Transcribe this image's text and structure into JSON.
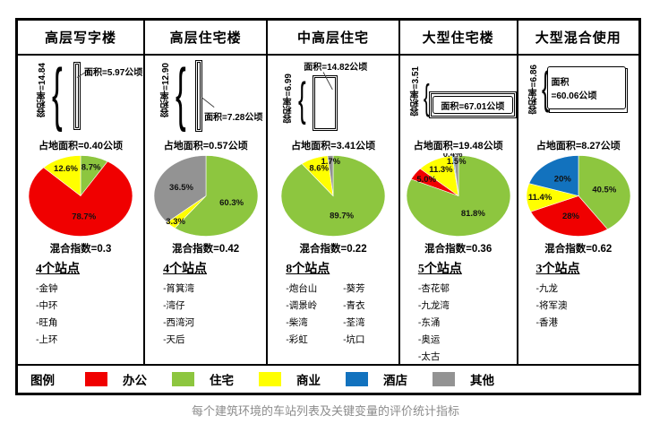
{
  "palette": {
    "office": "#f00000",
    "residential": "#8dc63f",
    "commercial": "#ffff00",
    "hotel": "#1272be",
    "other": "#939393"
  },
  "caption": "每个建筑环境的车站列表及关键变量的评价统计指标",
  "legend": {
    "title": "图例",
    "items": [
      {
        "label": "办公",
        "key": "office"
      },
      {
        "label": "住宅",
        "key": "residential"
      },
      {
        "label": "商业",
        "key": "commercial"
      },
      {
        "label": "酒店",
        "key": "hotel"
      },
      {
        "label": "其他",
        "key": "other"
      }
    ]
  },
  "columns": [
    {
      "title": "高层写字楼",
      "plot_ratio": "容积率=14.84",
      "area_label": "面积=5.97公顷",
      "footprint": "占地面积=0.40公顷",
      "mix_index_label": "混合指数=0.3",
      "station_count": "4个站点",
      "stations": [
        "-金钟",
        "-中环",
        "-旺角",
        "-上环"
      ]
    },
    {
      "title": "高层住宅楼",
      "plot_ratio": "容积率=12.90",
      "area_label": "面积=7.28公顷",
      "footprint": "占地面积=0.57公顷",
      "mix_index_label": "混合指数=0.42",
      "station_count": "4个站点",
      "stations": [
        "-筲箕湾",
        "-湾仔",
        "-西湾河",
        "-天后"
      ]
    },
    {
      "title": "中高层住宅",
      "plot_ratio": "容积率=6.99",
      "area_label": "面积=14.82公顷",
      "footprint": "占地面积=3.41公顷",
      "mix_index_label": "混合指数=0.22",
      "station_count": "8个站点",
      "stations": [
        "-炮台山",
        "-调景岭",
        "-柴湾",
        "-彩虹",
        "-葵芳",
        "-青衣",
        "-荃湾",
        "-坑口"
      ]
    },
    {
      "title": "大型住宅楼",
      "plot_ratio": "容积率=3.51",
      "area_label": "面积=67.01公顷",
      "footprint": "占地面积=19.48公顷",
      "mix_index_label": "混合指数=0.36",
      "station_count": "5个站点",
      "stations": [
        "-杏花邨",
        "-九龙湾",
        "-东涌",
        "-奥运",
        "-太古"
      ]
    },
    {
      "title": "大型混合使用",
      "plot_ratio": "容积率=6.86",
      "area_label_line1": "面积",
      "area_label_line2": "=60.06公顷",
      "footprint": "占地面积=8.27公顷",
      "mix_index_label": "混合指数=0.62",
      "station_count": "3个站点",
      "stations": [
        "-九龙",
        "-将军澳",
        "-香港"
      ]
    }
  ],
  "chart_data": [
    {
      "type": "pie",
      "title": "高层写字楼",
      "labels": [
        "住宅",
        "办公",
        "商业"
      ],
      "values": [
        8.7,
        78.7,
        12.6
      ],
      "value_labels": [
        "8.7%",
        "78.7%",
        "12.6%"
      ],
      "color_keys": [
        "residential",
        "office",
        "commercial"
      ],
      "mix_index": 0.3
    },
    {
      "type": "pie",
      "title": "高层住宅楼",
      "labels": [
        "住宅",
        "商业",
        "其他"
      ],
      "values": [
        60.3,
        3.3,
        36.5
      ],
      "value_labels": [
        "60.3%",
        "3.3%",
        "36.5%"
      ],
      "color_keys": [
        "residential",
        "commercial",
        "other"
      ],
      "mix_index": 0.42
    },
    {
      "type": "pie",
      "title": "中高层住宅",
      "labels": [
        "住宅",
        "商业",
        "其他"
      ],
      "values": [
        89.7,
        8.6,
        1.7
      ],
      "value_labels": [
        "89.7%",
        "8.6%",
        "1.7%"
      ],
      "color_keys": [
        "residential",
        "commercial",
        "other"
      ],
      "mix_index": 0.22
    },
    {
      "type": "pie",
      "title": "大型住宅楼",
      "labels": [
        "住宅",
        "办公",
        "商业",
        "酒店",
        "其他"
      ],
      "values": [
        81.8,
        5.0,
        11.3,
        0.4,
        1.5
      ],
      "value_labels": [
        "81.8%",
        "5.0%",
        "11.3%",
        "0.4%",
        "1.5%"
      ],
      "color_keys": [
        "residential",
        "office",
        "commercial",
        "hotel",
        "other"
      ],
      "mix_index": 0.36
    },
    {
      "type": "pie",
      "title": "大型混合使用",
      "labels": [
        "住宅",
        "办公",
        "商业",
        "酒店"
      ],
      "values": [
        40.5,
        28,
        11.4,
        20
      ],
      "value_labels": [
        "40.5%",
        "28%",
        "11.4%",
        "20%"
      ],
      "color_keys": [
        "residential",
        "office",
        "commercial",
        "hotel"
      ],
      "mix_index": 0.62
    }
  ]
}
